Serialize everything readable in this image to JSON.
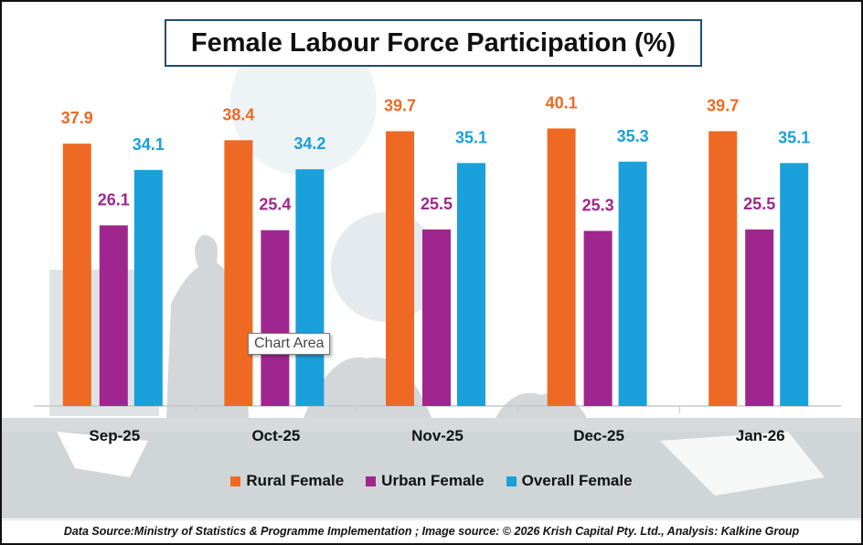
{
  "chart_data": {
    "type": "bar",
    "title": "Female Labour Force Participation (%)",
    "categories": [
      "Sep-25",
      "Oct-25",
      "Nov-25",
      "Dec-25",
      "Jan-26"
    ],
    "series": [
      {
        "name": "Rural Female",
        "color": "#ee6a24",
        "values": [
          37.9,
          38.4,
          39.7,
          40.1,
          39.7
        ]
      },
      {
        "name": "Urban Female",
        "color": "#a0268f",
        "values": [
          26.1,
          25.4,
          25.5,
          25.3,
          25.5
        ]
      },
      {
        "name": "Overall Female",
        "color": "#1aa0da",
        "values": [
          34.1,
          34.2,
          35.1,
          35.3,
          35.1
        ]
      }
    ],
    "xlabel": "",
    "ylabel": "",
    "ylim": [
      0,
      42
    ],
    "grid": false,
    "legend": "bottom"
  },
  "tooltip": "Chart Area",
  "source": "Data Source:Ministry of Statistics & Programme Implementation ; Image source: © 2026 Krish Capital Pty. Ltd., Analysis: Kalkine Group"
}
